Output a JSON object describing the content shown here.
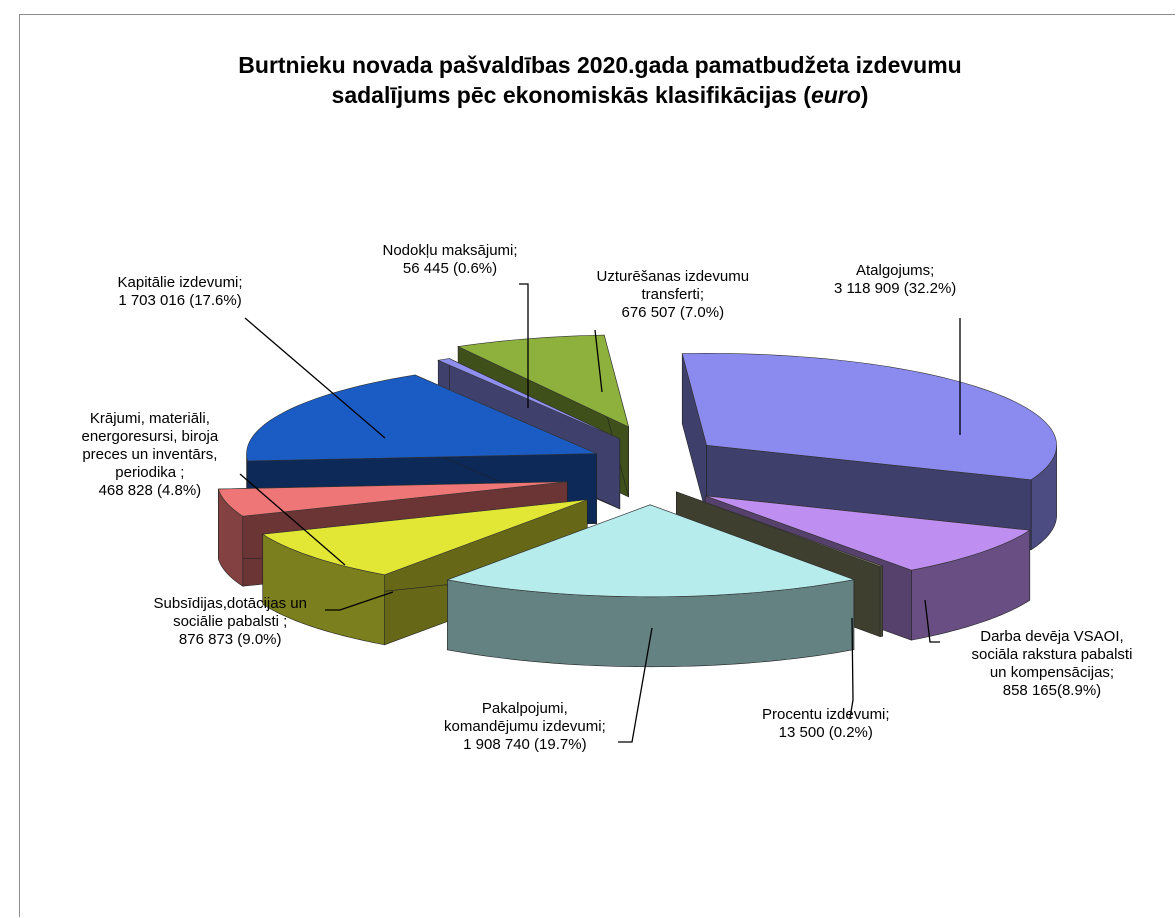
{
  "chart_data": {
    "type": "pie",
    "title_part1": "Burtnieku novada pašvaldības 2020.gada pamatbudžeta izdevumu",
    "title_part2": "sadalījums pēc ekonomiskās klasifikācijas (",
    "title_italic": "euro",
    "title_part3": ")",
    "slices": [
      {
        "label_lines": [
          "Atalgojums;",
          "3 118 909 (32.2%)"
        ],
        "value": 3118909,
        "percent": 32.2,
        "color": "#8b8bef"
      },
      {
        "label_lines": [
          "Darba devēja VSAOI,",
          "sociāla rakstura pabalsti",
          "un kompensācijas;",
          "858 165(8.9%)"
        ],
        "value": 858165,
        "percent": 8.9,
        "color": "#be8ef0"
      },
      {
        "label_lines": [
          "Procentu izdevumi;",
          "13 500 (0.2%)"
        ],
        "value": 13500,
        "percent": 0.2,
        "color": "#8b8b6a"
      },
      {
        "label_lines": [
          "Pakalpojumi,",
          "komandējumu izdevumi;",
          "1 908 740 (19.7%)"
        ],
        "value": 1908740,
        "percent": 19.7,
        "color": "#b6ecec"
      },
      {
        "label_lines": [
          "Subsīdijas,dotācijas un",
          "sociālie pabalsti ;",
          "876 873 (9.0%)"
        ],
        "value": 876873,
        "percent": 9.0,
        "color": "#e2e634"
      },
      {
        "label_lines": [
          "Krājumi, materiāli,",
          "energoresursi, biroja",
          "preces un inventārs,",
          "periodika ;",
          "468 828 (4.8%)"
        ],
        "value": 468828,
        "percent": 4.8,
        "color": "#ef7676"
      },
      {
        "label_lines": [
          "Kapitālie izdevumi;",
          "1 703 016 (17.6%)"
        ],
        "value": 1703016,
        "percent": 17.6,
        "color": "#1a5bc4"
      },
      {
        "label_lines": [
          "Nodokļu maksājumi;",
          "56 445 (0.6%)"
        ],
        "value": 56445,
        "percent": 0.6,
        "color": "#8f8fef"
      },
      {
        "label_lines": [
          "Uzturēšanas izdevumu",
          "transferti;",
          "676 507 (7.0%)"
        ],
        "value": 676507,
        "percent": 7.0,
        "color": "#8db13c"
      }
    ]
  }
}
